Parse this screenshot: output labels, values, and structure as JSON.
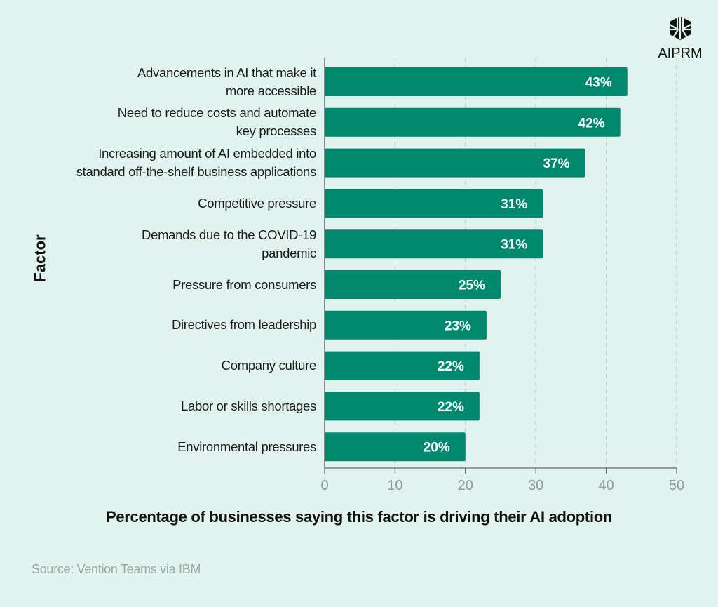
{
  "chart_data": {
    "type": "bar",
    "orientation": "horizontal",
    "categories": [
      [
        "Advancements in AI that make it",
        "more accessible"
      ],
      [
        "Need to reduce costs and automate",
        "key processes"
      ],
      [
        "Increasing amount of AI embedded into",
        "standard off-the-shelf business applications"
      ],
      [
        "Competitive pressure"
      ],
      [
        "Demands due to the COVID-19",
        "pandemic"
      ],
      [
        "Pressure from consumers"
      ],
      [
        "Directives from leadership"
      ],
      [
        "Company culture"
      ],
      [
        "Labor or skills shortages"
      ],
      [
        "Environmental pressures"
      ]
    ],
    "values": [
      43,
      42,
      37,
      31,
      31,
      25,
      23,
      22,
      22,
      20
    ],
    "data_labels": [
      "43%",
      "42%",
      "37%",
      "31%",
      "31%",
      "25%",
      "23%",
      "22%",
      "22%",
      "20%"
    ],
    "xlabel": "Percentage of businesses saying this factor is driving their AI adoption",
    "ylabel": "Factor",
    "xlim": [
      0,
      50
    ],
    "xticks": [
      0,
      10,
      20,
      30,
      40,
      50
    ],
    "grid": "vertical dashed",
    "bar_color": "#00896f",
    "background": "#e1f3ef"
  },
  "source": "Source: Vention Teams via IBM",
  "logo": {
    "text": "AIPRM",
    "icon": "aiprm-logo-icon"
  }
}
